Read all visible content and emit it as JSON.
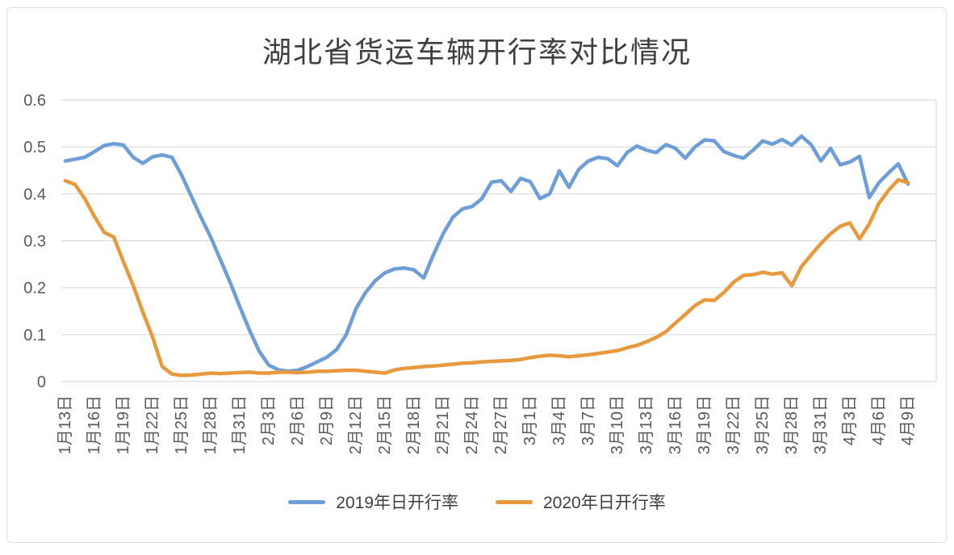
{
  "chart_data": {
    "type": "line",
    "title": "湖北省货运车辆开行率对比情况",
    "xlabel": "",
    "ylabel": "",
    "ylim": [
      0,
      0.6
    ],
    "grid": "horizontal",
    "legend_position": "bottom",
    "gridline_color": "#d9d9d9",
    "axis_text_color": "#595959",
    "y_tick_labels": [
      "0",
      "0.1",
      "0.2",
      "0.3",
      "0.4",
      "0.5",
      "0.6"
    ],
    "x_tick_labels": [
      "1月13日",
      "1月16日",
      "1月19日",
      "1月22日",
      "1月25日",
      "1月28日",
      "1月31日",
      "2月3日",
      "2月6日",
      "2月9日",
      "2月12日",
      "2月15日",
      "2月18日",
      "2月21日",
      "2月24日",
      "2月27日",
      "3月1日",
      "3月4日",
      "3月7日",
      "3月10日",
      "3月13日",
      "3月16日",
      "3月19日",
      "3月22日",
      "3月25日",
      "3月28日",
      "3月31日",
      "4月3日",
      "4月6日",
      "4月9日"
    ],
    "x": [
      "1月13日",
      "1月14日",
      "1月15日",
      "1月16日",
      "1月17日",
      "1月18日",
      "1月19日",
      "1月20日",
      "1月21日",
      "1月22日",
      "1月23日",
      "1月24日",
      "1月25日",
      "1月26日",
      "1月27日",
      "1月28日",
      "1月29日",
      "1月30日",
      "1月31日",
      "2月1日",
      "2月2日",
      "2月3日",
      "2月4日",
      "2月5日",
      "2月6日",
      "2月7日",
      "2月8日",
      "2月9日",
      "2月10日",
      "2月11日",
      "2月12日",
      "2月13日",
      "2月14日",
      "2月15日",
      "2月16日",
      "2月17日",
      "2月18日",
      "2月19日",
      "2月20日",
      "2月21日",
      "2月22日",
      "2月23日",
      "2月24日",
      "2月25日",
      "2月26日",
      "2月27日",
      "2月28日",
      "2月29日",
      "3月1日",
      "3月2日",
      "3月3日",
      "3月4日",
      "3月5日",
      "3月6日",
      "3月7日",
      "3月8日",
      "3月9日",
      "3月10日",
      "3月11日",
      "3月12日",
      "3月13日",
      "3月14日",
      "3月15日",
      "3月16日",
      "3月17日",
      "3月18日",
      "3月19日",
      "3月20日",
      "3月21日",
      "3月22日",
      "3月23日",
      "3月24日",
      "3月25日",
      "3月26日",
      "3月27日",
      "3月28日",
      "3月29日",
      "3月30日",
      "3月31日",
      "4月1日",
      "4月2日",
      "4月3日",
      "4月4日",
      "4月5日",
      "4月6日",
      "4月7日",
      "4月8日",
      "4月9日"
    ],
    "series": [
      {
        "name": "2019年日开行率",
        "color": "#6e9ed8",
        "values": [
          0.47,
          0.474,
          0.478,
          0.49,
          0.503,
          0.507,
          0.504,
          0.478,
          0.465,
          0.479,
          0.483,
          0.478,
          0.44,
          0.395,
          0.35,
          0.308,
          0.26,
          0.212,
          0.16,
          0.11,
          0.065,
          0.035,
          0.025,
          0.022,
          0.024,
          0.032,
          0.042,
          0.052,
          0.068,
          0.1,
          0.155,
          0.19,
          0.215,
          0.232,
          0.24,
          0.242,
          0.238,
          0.221,
          0.27,
          0.315,
          0.35,
          0.368,
          0.373,
          0.39,
          0.425,
          0.428,
          0.405,
          0.433,
          0.426,
          0.39,
          0.4,
          0.449,
          0.414,
          0.452,
          0.47,
          0.478,
          0.475,
          0.46,
          0.488,
          0.502,
          0.493,
          0.488,
          0.505,
          0.497,
          0.476,
          0.5,
          0.515,
          0.513,
          0.49,
          0.482,
          0.476,
          0.493,
          0.513,
          0.506,
          0.516,
          0.504,
          0.523,
          0.505,
          0.47,
          0.497,
          0.462,
          0.468,
          0.48,
          0.392,
          0.424,
          0.445,
          0.464,
          0.421
        ]
      },
      {
        "name": "2020年日开行率",
        "color": "#e8993c",
        "values": [
          0.428,
          0.42,
          0.39,
          0.352,
          0.318,
          0.308,
          0.255,
          0.205,
          0.148,
          0.095,
          0.032,
          0.016,
          0.013,
          0.014,
          0.016,
          0.018,
          0.017,
          0.018,
          0.019,
          0.02,
          0.018,
          0.018,
          0.02,
          0.02,
          0.019,
          0.02,
          0.022,
          0.022,
          0.023,
          0.024,
          0.024,
          0.022,
          0.02,
          0.018,
          0.025,
          0.028,
          0.03,
          0.032,
          0.033,
          0.035,
          0.037,
          0.039,
          0.04,
          0.042,
          0.043,
          0.044,
          0.045,
          0.047,
          0.051,
          0.054,
          0.056,
          0.055,
          0.053,
          0.055,
          0.057,
          0.06,
          0.063,
          0.066,
          0.072,
          0.077,
          0.085,
          0.094,
          0.106,
          0.125,
          0.143,
          0.162,
          0.174,
          0.173,
          0.19,
          0.212,
          0.226,
          0.228,
          0.233,
          0.229,
          0.232,
          0.204,
          0.245,
          0.27,
          0.294,
          0.315,
          0.331,
          0.338,
          0.304,
          0.336,
          0.38,
          0.408,
          0.43,
          0.424
        ]
      }
    ]
  }
}
